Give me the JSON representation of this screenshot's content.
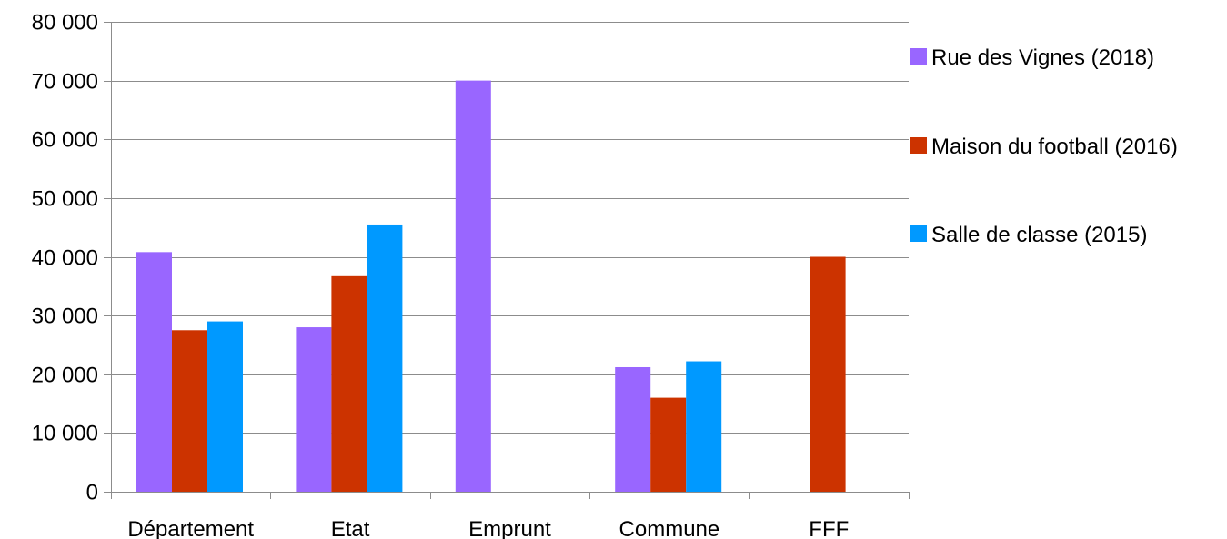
{
  "chart_data": {
    "type": "bar",
    "categories": [
      "Département",
      "Etat",
      "Emprunt",
      "Commune",
      "FFF"
    ],
    "series": [
      {
        "name": "Rue des Vignes (2018)",
        "color": "#9966ff",
        "values": [
          40800,
          28000,
          70000,
          21200,
          0
        ]
      },
      {
        "name": "Maison du football (2016)",
        "color": "#cc3300",
        "values": [
          27500,
          36700,
          0,
          16000,
          40000
        ]
      },
      {
        "name": "Salle de classe (2015)",
        "color": "#0099ff",
        "values": [
          29000,
          45500,
          0,
          22200,
          0
        ]
      }
    ],
    "ylim": [
      0,
      80000
    ],
    "yticks": [
      0,
      10000,
      20000,
      30000,
      40000,
      50000,
      60000,
      70000,
      80000
    ],
    "ytick_labels": [
      "0",
      "10 000",
      "20 000",
      "30 000",
      "40 000",
      "50 000",
      "60 000",
      "70 000",
      "80 000"
    ],
    "grid": true,
    "legend_position": "right",
    "title": "",
    "xlabel": "",
    "ylabel": ""
  }
}
